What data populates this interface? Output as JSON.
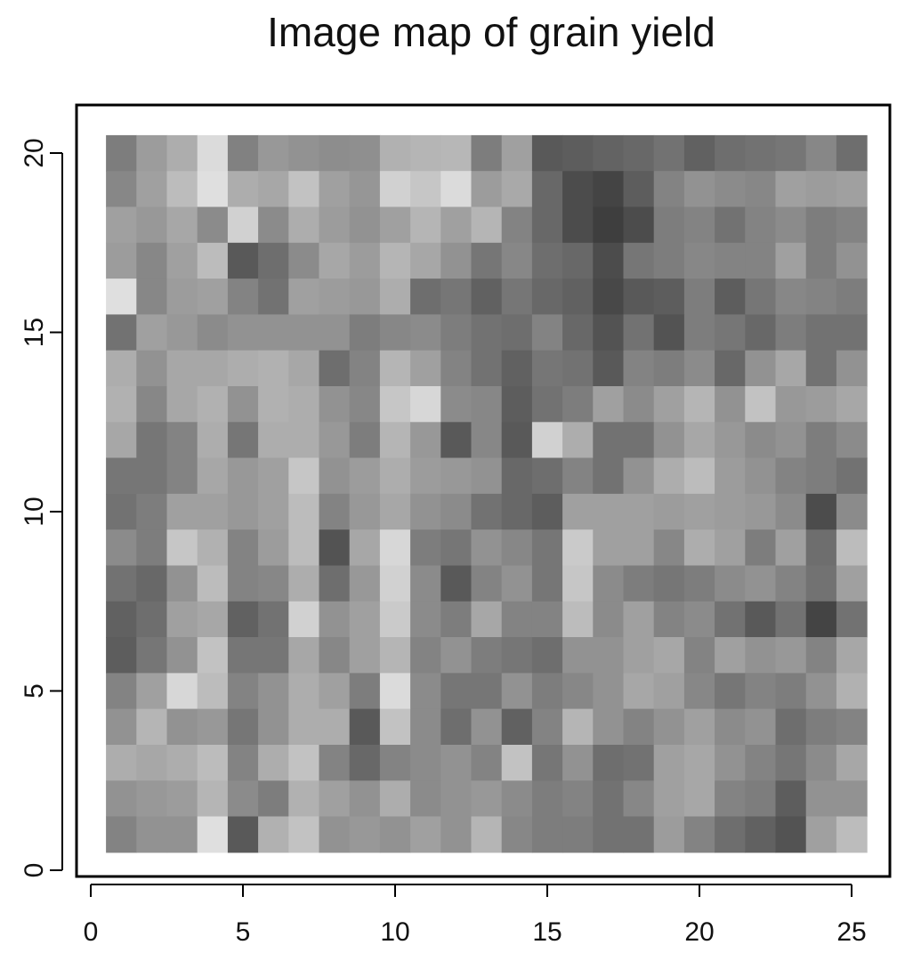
{
  "chart_data": {
    "type": "heatmap",
    "title": "Image map of grain yield",
    "xlabel": "",
    "ylabel": "",
    "xlim": [
      0,
      25.5
    ],
    "ylim": [
      0,
      20.5
    ],
    "x_ticks": [
      0,
      5,
      10,
      15,
      20,
      25
    ],
    "y_ticks": [
      0,
      5,
      10,
      15,
      20
    ],
    "columns": 25,
    "rows": 20,
    "color_scale": "grayscale (dark = low, light = high)",
    "grid": false,
    "z_rows_top_to_bottom": [
      [
        0.45,
        0.6,
        0.68,
        0.9,
        0.47,
        0.58,
        0.55,
        0.53,
        0.54,
        0.7,
        0.72,
        0.73,
        0.45,
        0.62,
        0.28,
        0.3,
        0.33,
        0.35,
        0.4,
        0.32,
        0.38,
        0.4,
        0.42,
        0.5,
        0.38
      ],
      [
        0.5,
        0.62,
        0.75,
        0.92,
        0.68,
        0.65,
        0.78,
        0.62,
        0.57,
        0.85,
        0.8,
        0.9,
        0.6,
        0.66,
        0.35,
        0.22,
        0.18,
        0.3,
        0.48,
        0.55,
        0.52,
        0.5,
        0.62,
        0.6,
        0.62
      ],
      [
        0.62,
        0.58,
        0.65,
        0.52,
        0.85,
        0.52,
        0.68,
        0.6,
        0.55,
        0.62,
        0.72,
        0.62,
        0.72,
        0.48,
        0.35,
        0.22,
        0.15,
        0.22,
        0.45,
        0.48,
        0.4,
        0.48,
        0.52,
        0.45,
        0.48
      ],
      [
        0.6,
        0.5,
        0.62,
        0.75,
        0.28,
        0.38,
        0.52,
        0.65,
        0.6,
        0.72,
        0.65,
        0.55,
        0.42,
        0.5,
        0.38,
        0.35,
        0.22,
        0.42,
        0.45,
        0.5,
        0.48,
        0.48,
        0.62,
        0.45,
        0.55
      ],
      [
        0.92,
        0.5,
        0.6,
        0.62,
        0.48,
        0.4,
        0.62,
        0.6,
        0.58,
        0.68,
        0.38,
        0.42,
        0.32,
        0.42,
        0.35,
        0.32,
        0.2,
        0.28,
        0.3,
        0.45,
        0.3,
        0.42,
        0.5,
        0.48,
        0.45
      ],
      [
        0.4,
        0.62,
        0.58,
        0.52,
        0.55,
        0.55,
        0.55,
        0.55,
        0.45,
        0.5,
        0.52,
        0.45,
        0.4,
        0.38,
        0.48,
        0.35,
        0.25,
        0.4,
        0.25,
        0.45,
        0.42,
        0.35,
        0.45,
        0.4,
        0.4
      ],
      [
        0.68,
        0.55,
        0.65,
        0.65,
        0.68,
        0.7,
        0.65,
        0.38,
        0.48,
        0.72,
        0.62,
        0.48,
        0.4,
        0.32,
        0.42,
        0.4,
        0.28,
        0.48,
        0.45,
        0.52,
        0.35,
        0.55,
        0.65,
        0.4,
        0.55
      ],
      [
        0.7,
        0.5,
        0.65,
        0.7,
        0.55,
        0.7,
        0.68,
        0.55,
        0.5,
        0.8,
        0.88,
        0.52,
        0.5,
        0.3,
        0.4,
        0.45,
        0.62,
        0.52,
        0.62,
        0.72,
        0.55,
        0.78,
        0.58,
        0.6,
        0.65
      ],
      [
        0.65,
        0.42,
        0.48,
        0.68,
        0.42,
        0.68,
        0.68,
        0.58,
        0.45,
        0.72,
        0.58,
        0.28,
        0.5,
        0.28,
        0.85,
        0.68,
        0.4,
        0.4,
        0.55,
        0.65,
        0.58,
        0.52,
        0.55,
        0.45,
        0.52
      ],
      [
        0.42,
        0.42,
        0.48,
        0.65,
        0.58,
        0.62,
        0.8,
        0.55,
        0.6,
        0.68,
        0.6,
        0.58,
        0.55,
        0.35,
        0.38,
        0.48,
        0.4,
        0.55,
        0.68,
        0.75,
        0.6,
        0.55,
        0.48,
        0.45,
        0.4
      ],
      [
        0.4,
        0.45,
        0.62,
        0.62,
        0.58,
        0.62,
        0.75,
        0.48,
        0.58,
        0.65,
        0.55,
        0.52,
        0.4,
        0.35,
        0.3,
        0.62,
        0.62,
        0.62,
        0.6,
        0.62,
        0.6,
        0.58,
        0.52,
        0.22,
        0.52
      ],
      [
        0.52,
        0.45,
        0.8,
        0.7,
        0.48,
        0.6,
        0.75,
        0.25,
        0.65,
        0.88,
        0.45,
        0.42,
        0.55,
        0.5,
        0.42,
        0.82,
        0.62,
        0.62,
        0.5,
        0.68,
        0.62,
        0.45,
        0.62,
        0.38,
        0.75
      ],
      [
        0.4,
        0.35,
        0.55,
        0.75,
        0.48,
        0.5,
        0.68,
        0.38,
        0.58,
        0.85,
        0.52,
        0.28,
        0.48,
        0.55,
        0.42,
        0.8,
        0.52,
        0.45,
        0.42,
        0.45,
        0.52,
        0.55,
        0.48,
        0.4,
        0.62
      ],
      [
        0.32,
        0.38,
        0.62,
        0.65,
        0.32,
        0.4,
        0.85,
        0.55,
        0.62,
        0.82,
        0.52,
        0.45,
        0.65,
        0.48,
        0.48,
        0.75,
        0.52,
        0.62,
        0.48,
        0.52,
        0.4,
        0.28,
        0.4,
        0.18,
        0.4
      ],
      [
        0.3,
        0.42,
        0.55,
        0.78,
        0.42,
        0.42,
        0.65,
        0.5,
        0.62,
        0.72,
        0.48,
        0.55,
        0.45,
        0.42,
        0.38,
        0.55,
        0.55,
        0.62,
        0.65,
        0.48,
        0.62,
        0.55,
        0.58,
        0.48,
        0.65
      ],
      [
        0.48,
        0.62,
        0.88,
        0.75,
        0.48,
        0.55,
        0.68,
        0.62,
        0.45,
        0.9,
        0.52,
        0.42,
        0.42,
        0.55,
        0.45,
        0.5,
        0.55,
        0.65,
        0.62,
        0.5,
        0.42,
        0.48,
        0.45,
        0.55,
        0.7
      ],
      [
        0.55,
        0.72,
        0.55,
        0.58,
        0.42,
        0.55,
        0.68,
        0.68,
        0.28,
        0.78,
        0.52,
        0.38,
        0.55,
        0.32,
        0.48,
        0.72,
        0.55,
        0.48,
        0.55,
        0.62,
        0.52,
        0.55,
        0.38,
        0.45,
        0.48
      ],
      [
        0.68,
        0.65,
        0.68,
        0.75,
        0.48,
        0.68,
        0.78,
        0.48,
        0.35,
        0.48,
        0.52,
        0.55,
        0.48,
        0.78,
        0.42,
        0.55,
        0.38,
        0.4,
        0.62,
        0.65,
        0.55,
        0.48,
        0.42,
        0.52,
        0.65
      ],
      [
        0.55,
        0.58,
        0.6,
        0.72,
        0.52,
        0.45,
        0.7,
        0.62,
        0.55,
        0.68,
        0.52,
        0.55,
        0.58,
        0.52,
        0.45,
        0.48,
        0.4,
        0.5,
        0.62,
        0.65,
        0.48,
        0.45,
        0.3,
        0.55,
        0.55
      ],
      [
        0.48,
        0.55,
        0.55,
        0.92,
        0.28,
        0.7,
        0.78,
        0.55,
        0.58,
        0.55,
        0.62,
        0.55,
        0.72,
        0.5,
        0.45,
        0.45,
        0.4,
        0.4,
        0.6,
        0.48,
        0.38,
        0.32,
        0.25,
        0.62,
        0.75
      ]
    ]
  }
}
